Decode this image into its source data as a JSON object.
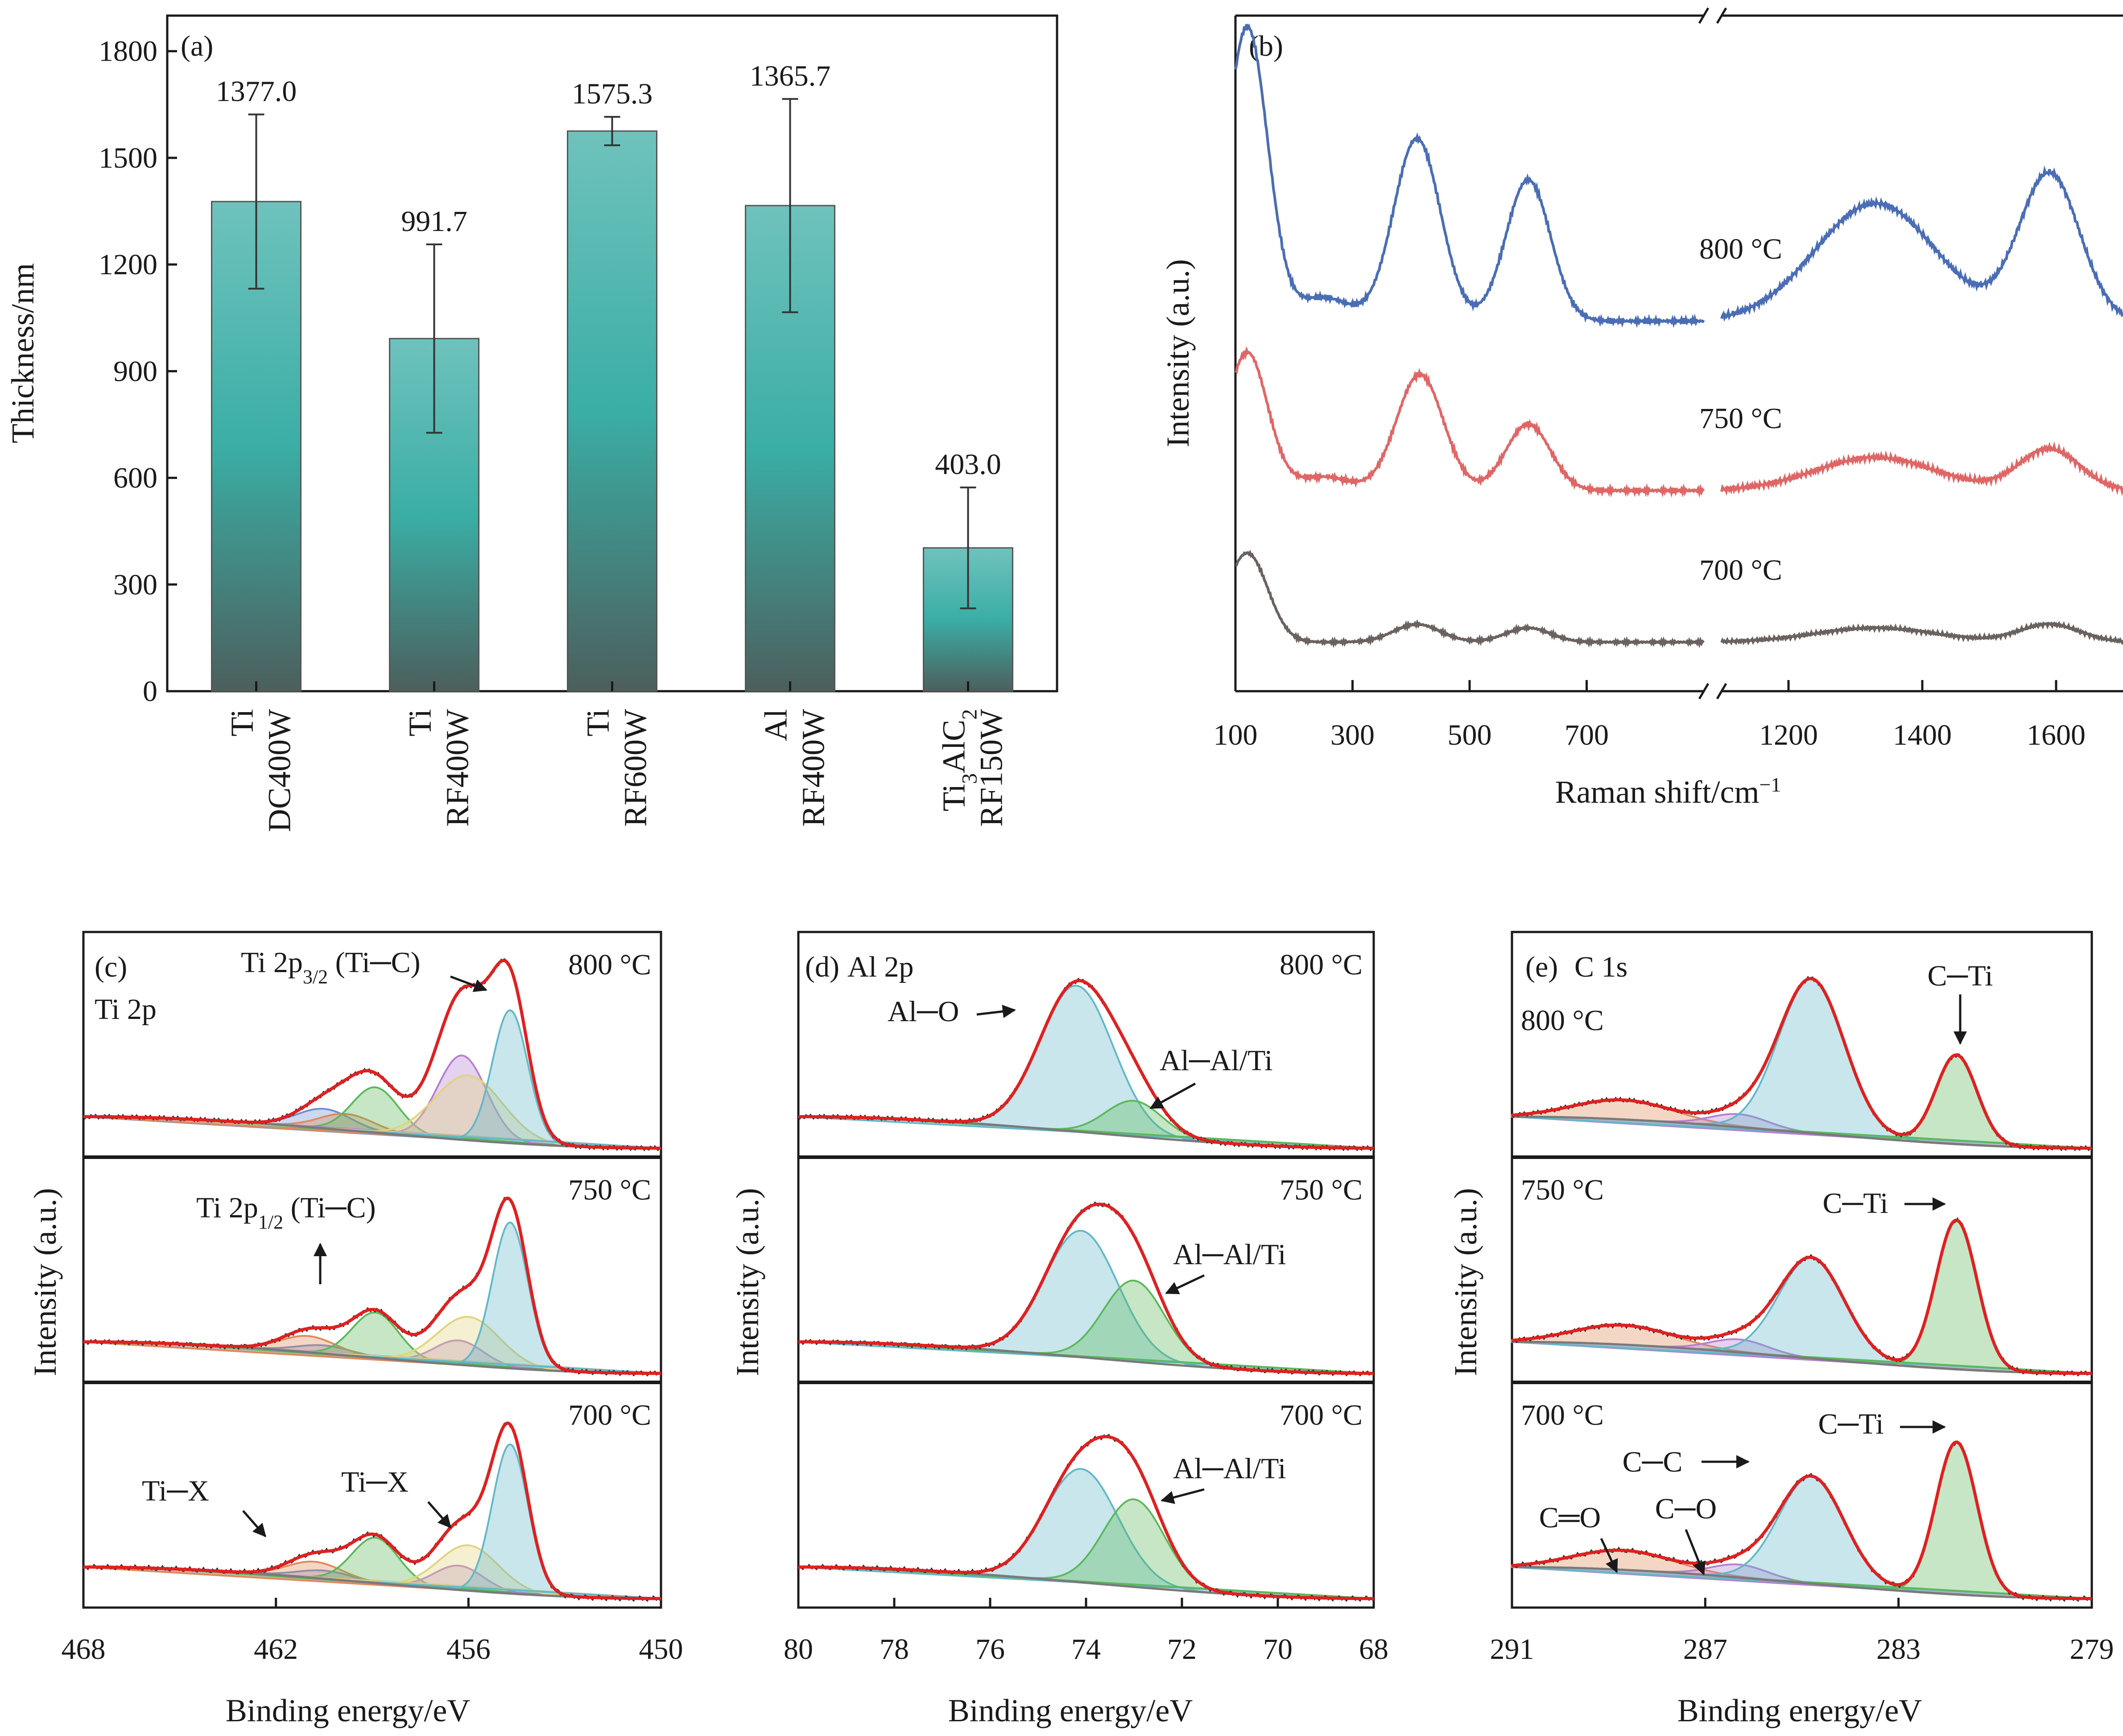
{
  "colors": {
    "bar_top": "#6fc2bd",
    "bar_mid": "#3aaea5",
    "bar_bottom": "#4c5f5d",
    "raman_800": "#4a6db5",
    "raman_750": "#e06666",
    "raman_700": "#6a625f",
    "xps_envelope": "#e02020",
    "xps_raw": "#333333",
    "xps_background": "#7a7a7a",
    "fit_blue": "#6e8fd0",
    "fit_green": "#5cb85c",
    "fit_purple": "#b57fd1",
    "fit_yellow": "#e0d47a",
    "fit_cyan": "#62b8c8",
    "fit_orange": "#e08a5a",
    "fit_red": "#d9534f"
  },
  "chart_data": [
    {
      "panel": "(a)",
      "type": "bar",
      "ylabel": "Thickness/nm",
      "ylim": [
        0,
        1900
      ],
      "yticks": [
        "0",
        "300",
        "600",
        "900",
        "1200",
        "1500",
        "1800"
      ],
      "categories": [
        {
          "material": "Ti",
          "condition": "DC400W"
        },
        {
          "material": "Ti",
          "condition": "RF400W"
        },
        {
          "material": "Ti",
          "condition": "RF600W"
        },
        {
          "material": "Al",
          "condition": "RF400W"
        },
        {
          "material": "Ti3AlC2",
          "condition": "RF150W",
          "material_parts": [
            "Ti",
            "3",
            "AlC",
            "2"
          ]
        }
      ],
      "values": [
        1377.0,
        991.7,
        1575.3,
        1365.7,
        403.0
      ],
      "value_labels": [
        "1377.0",
        "991.7",
        "1575.3",
        "1365.7",
        "403.0"
      ],
      "errors": [
        245,
        265,
        40,
        300,
        170
      ]
    },
    {
      "panel": "(b)",
      "type": "line",
      "xlabel": "Raman shift/cm",
      "xlabel_sup": "−1",
      "ylabel": "Intensity (a.u.)",
      "xticks_left": [
        "100",
        "300",
        "500",
        "700"
      ],
      "xticks_right": [
        "1200",
        "1400",
        "1600"
      ],
      "xlim_left": [
        100,
        900
      ],
      "xlim_right": [
        1100,
        1700
      ],
      "series": [
        {
          "name": "800 °C",
          "label": "800 °C",
          "peaks": [
            {
              "x": 120,
              "h": 1.0
            },
            {
              "x": 250,
              "h": 0.08
            },
            {
              "x": 410,
              "h": 0.62
            },
            {
              "x": 600,
              "h": 0.48
            },
            {
              "x": 1330,
              "h": 0.4
            },
            {
              "x": 1590,
              "h": 0.5
            }
          ]
        },
        {
          "name": "750 °C",
          "label": "750 °C",
          "peaks": [
            {
              "x": 120,
              "h": 0.5
            },
            {
              "x": 250,
              "h": 0.05
            },
            {
              "x": 415,
              "h": 0.42
            },
            {
              "x": 600,
              "h": 0.24
            },
            {
              "x": 1330,
              "h": 0.12
            },
            {
              "x": 1590,
              "h": 0.15
            }
          ]
        },
        {
          "name": "700 °C",
          "label": "700 °C",
          "peaks": [
            {
              "x": 120,
              "h": 0.5
            },
            {
              "x": 410,
              "h": 0.1
            },
            {
              "x": 600,
              "h": 0.08
            },
            {
              "x": 1330,
              "h": 0.08
            },
            {
              "x": 1590,
              "h": 0.1
            }
          ]
        }
      ]
    },
    {
      "panel": "(c)",
      "type": "line",
      "title": "Ti 2p",
      "xlabel": "Binding energy/eV",
      "ylabel": "Intensity (a.u.)",
      "xlim": [
        468,
        450
      ],
      "xticks": [
        "468",
        "462",
        "456",
        "450"
      ],
      "stacks": [
        {
          "temp": "800 °C",
          "components": [
            {
              "center": 460.5,
              "height": 0.12,
              "fwhm": 2.0
            },
            {
              "center": 459.8,
              "height": 0.1,
              "fwhm": 2.0
            },
            {
              "center": 458.9,
              "height": 0.28,
              "fwhm": 1.7
            },
            {
              "center": 456.2,
              "height": 0.52,
              "fwhm": 1.8
            },
            {
              "center": 456.0,
              "height": 0.4,
              "fwhm": 2.5
            },
            {
              "center": 454.7,
              "height": 0.82,
              "fwhm": 1.3
            }
          ]
        },
        {
          "temp": "750 °C",
          "components": [
            {
              "center": 460.5,
              "height": 0.05,
              "fwhm": 2.0
            },
            {
              "center": 461.0,
              "height": 0.1,
              "fwhm": 2.0
            },
            {
              "center": 458.9,
              "height": 0.28,
              "fwhm": 1.7
            },
            {
              "center": 456.3,
              "height": 0.15,
              "fwhm": 1.8
            },
            {
              "center": 456.0,
              "height": 0.3,
              "fwhm": 2.3
            },
            {
              "center": 454.7,
              "height": 0.9,
              "fwhm": 1.3
            }
          ]
        },
        {
          "temp": "700 °C",
          "components": [
            {
              "center": 460.5,
              "height": 0.05,
              "fwhm": 2.0
            },
            {
              "center": 460.8,
              "height": 0.1,
              "fwhm": 2.0
            },
            {
              "center": 458.9,
              "height": 0.28,
              "fwhm": 1.7
            },
            {
              "center": 456.3,
              "height": 0.15,
              "fwhm": 1.8
            },
            {
              "center": 456.0,
              "height": 0.28,
              "fwhm": 2.2
            },
            {
              "center": 454.7,
              "height": 0.92,
              "fwhm": 1.3
            }
          ]
        }
      ],
      "annotations": {
        "ti2p32_main": "Ti 2p",
        "ti2p32_sub": "3/2",
        "ti2p32_tail": " (Ti─C)",
        "ti2p12_main": "Ti 2p",
        "ti2p12_sub": "1/2",
        "ti2p12_tail": " (Ti─C)",
        "tix_1": "Ti─X",
        "tix_2": "Ti─X"
      }
    },
    {
      "panel": "(d)",
      "type": "line",
      "title": "Al 2p",
      "xlabel": "Binding energy/eV",
      "ylabel": "Intensity (a.u.)",
      "xlim": [
        80,
        68
      ],
      "xticks": [
        "80",
        "78",
        "76",
        "74",
        "72",
        "70",
        "68"
      ],
      "stacks": [
        {
          "temp": "800 °C",
          "components": [
            {
              "center": 74.2,
              "height": 0.9,
              "fwhm": 1.8
            },
            {
              "center": 73.0,
              "height": 0.22,
              "fwhm": 1.4
            }
          ]
        },
        {
          "temp": "750 °C",
          "components": [
            {
              "center": 74.1,
              "height": 0.78,
              "fwhm": 1.8
            },
            {
              "center": 73.0,
              "height": 0.5,
              "fwhm": 1.5
            }
          ]
        },
        {
          "temp": "700 °C",
          "components": [
            {
              "center": 74.1,
              "height": 0.7,
              "fwhm": 1.8
            },
            {
              "center": 73.0,
              "height": 0.54,
              "fwhm": 1.5
            }
          ]
        }
      ],
      "annotations": {
        "alo": "Al─O",
        "alal_800": "Al─Al/Ti",
        "alal_750": "Al─Al/Ti",
        "alal_700": "Al─Al/Ti"
      }
    },
    {
      "panel": "(e)",
      "type": "line",
      "title": "C 1s",
      "xlabel": "Binding energy/eV",
      "ylabel": "Intensity (a.u.)",
      "xlim": [
        291,
        279
      ],
      "xticks": [
        "291",
        "287",
        "283",
        "279"
      ],
      "stacks": [
        {
          "temp": "800 °C",
          "components": [
            {
              "center": 288.7,
              "height": 0.12,
              "fwhm": 2.4
            },
            {
              "center": 286.3,
              "height": 0.08,
              "fwhm": 1.4
            },
            {
              "center": 284.8,
              "height": 0.95,
              "fwhm": 1.6
            },
            {
              "center": 281.8,
              "height": 0.55,
              "fwhm": 1.0
            }
          ]
        },
        {
          "temp": "750 °C",
          "components": [
            {
              "center": 288.7,
              "height": 0.12,
              "fwhm": 2.4
            },
            {
              "center": 286.3,
              "height": 0.08,
              "fwhm": 1.4
            },
            {
              "center": 284.8,
              "height": 0.62,
              "fwhm": 1.6
            },
            {
              "center": 281.8,
              "height": 0.92,
              "fwhm": 1.0
            }
          ]
        },
        {
          "temp": "700 °C",
          "components": [
            {
              "center": 288.7,
              "height": 0.12,
              "fwhm": 2.4
            },
            {
              "center": 286.3,
              "height": 0.08,
              "fwhm": 1.4
            },
            {
              "center": 284.8,
              "height": 0.66,
              "fwhm": 1.6
            },
            {
              "center": 281.8,
              "height": 0.94,
              "fwhm": 1.0
            }
          ]
        }
      ],
      "annotations": {
        "cti_800": "C─Ti",
        "cti_750": "C─Ti",
        "cti_700": "C─Ti",
        "cc": "C─C",
        "co": "C─O",
        "co_double": "C═O"
      }
    }
  ]
}
